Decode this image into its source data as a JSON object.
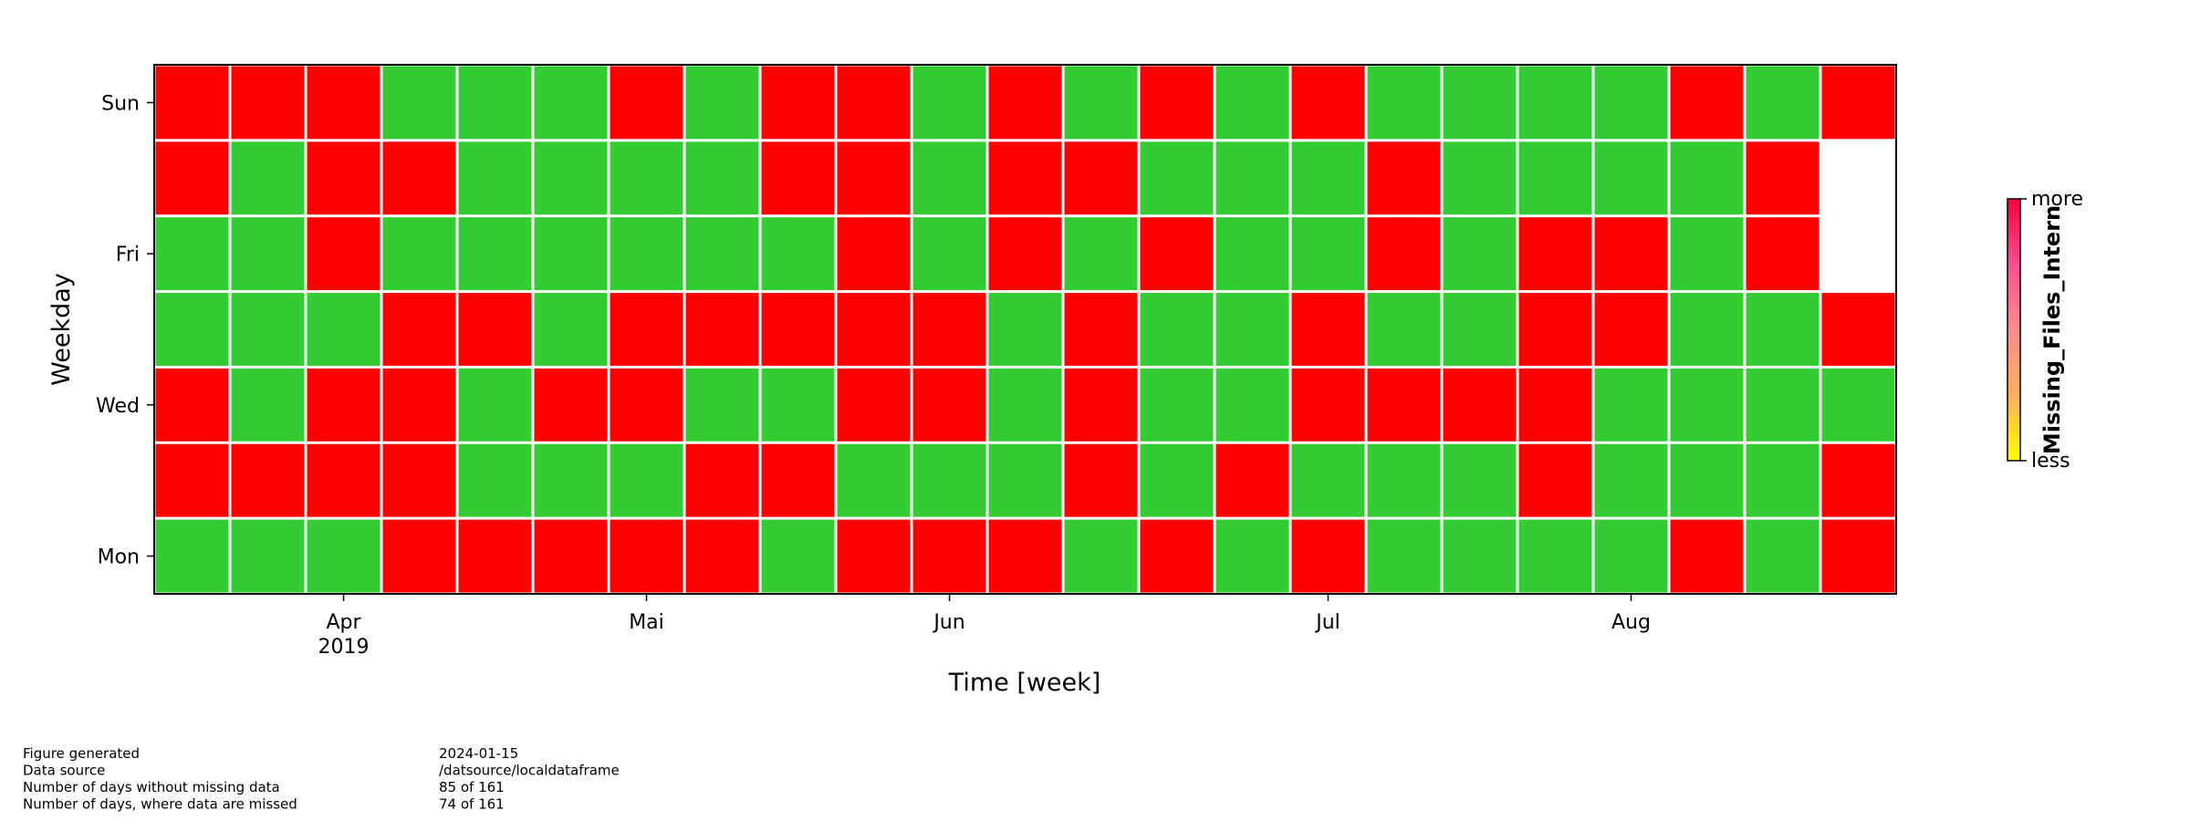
{
  "chart_data": {
    "type": "heatmap",
    "xlabel": "Time [week]",
    "ylabel": "Weekday",
    "ycategories": [
      "Mon",
      null,
      "Wed",
      null,
      "Fri",
      null,
      "Sun"
    ],
    "xlim": [
      0,
      23
    ],
    "xticks": [
      {
        "value": 2.5,
        "label": "Apr\n2019"
      },
      {
        "value": 6.5,
        "label": "Mai"
      },
      {
        "value": 10.5,
        "label": "Jun"
      },
      {
        "value": 15.5,
        "label": "Jul"
      },
      {
        "value": 19.5,
        "label": "Aug"
      }
    ],
    "palette": [
      "#33cc33",
      "#ff0000"
    ],
    "values": [
      [
        0,
        0,
        0,
        1,
        1,
        1,
        1,
        1,
        0,
        1,
        1,
        1,
        0,
        1,
        0,
        1,
        0,
        0,
        0,
        0,
        1,
        0,
        1
      ],
      [
        1,
        1,
        1,
        1,
        0,
        0,
        0,
        1,
        1,
        0,
        0,
        0,
        1,
        0,
        1,
        0,
        0,
        0,
        1,
        0,
        0,
        0,
        1
      ],
      [
        1,
        0,
        1,
        1,
        0,
        1,
        1,
        0,
        0,
        1,
        1,
        0,
        1,
        0,
        0,
        1,
        1,
        1,
        1,
        0,
        0,
        0,
        0
      ],
      [
        0,
        0,
        0,
        1,
        1,
        0,
        1,
        1,
        1,
        1,
        1,
        0,
        1,
        0,
        0,
        1,
        0,
        0,
        1,
        1,
        0,
        0,
        1
      ],
      [
        0,
        0,
        1,
        0,
        0,
        0,
        0,
        0,
        0,
        1,
        0,
        1,
        0,
        1,
        0,
        0,
        1,
        0,
        1,
        1,
        0,
        1,
        null
      ],
      [
        1,
        0,
        1,
        1,
        0,
        0,
        0,
        0,
        1,
        1,
        0,
        1,
        1,
        0,
        0,
        0,
        1,
        0,
        0,
        0,
        0,
        1,
        null
      ],
      [
        1,
        1,
        1,
        0,
        0,
        0,
        1,
        0,
        1,
        1,
        0,
        1,
        0,
        1,
        0,
        1,
        0,
        0,
        0,
        0,
        1,
        0,
        1
      ]
    ],
    "colorbar": {
      "label": "Missing_Files_Intern",
      "colors": [
        "#ffff00",
        "#ffb060",
        "#ff8c8c",
        "#ff5090",
        "#ff0040"
      ],
      "lim": [
        0,
        1
      ],
      "ticks": [
        {
          "value": 1,
          "label": "more"
        },
        {
          "value": 0,
          "label": "less"
        }
      ]
    }
  },
  "footer": [
    {
      "label": "Figure generated",
      "value": "2024-01-15"
    },
    {
      "label": "Data source",
      "value": "/datsource/localdataframe"
    },
    {
      "label": "Number of days without missing data",
      "value": "85 of 161"
    },
    {
      "label": "Number of days, where data are missed",
      "value": "74 of 161"
    }
  ]
}
